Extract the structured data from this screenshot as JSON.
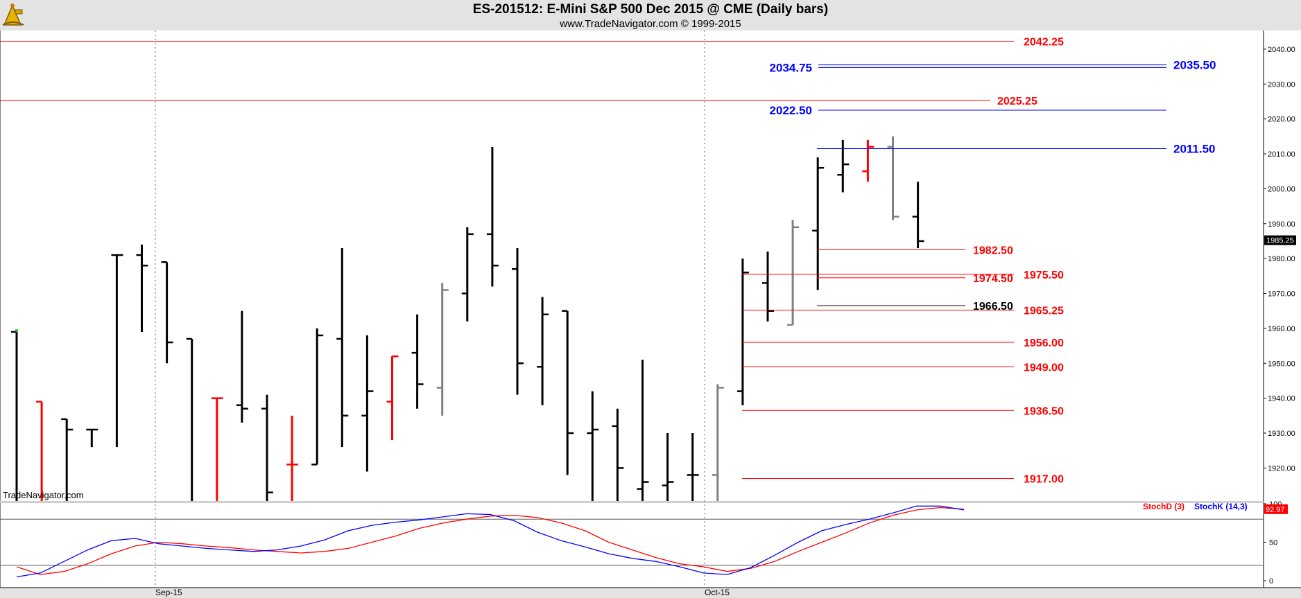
{
  "header": {
    "title": "ES-201512:  E-Mini S&P 500 Dec 2015 @ CME  (Daily bars)",
    "subtitle": "www.TradeNavigator.com © 1999-2015",
    "watermark": "TradeNavigator.com",
    "logo_icon": "sextant-logo-icon"
  },
  "colors": {
    "up_bar": "#000000",
    "down_bar": "#ff0000",
    "gray_bar": "#808080",
    "support_line": "#ff0000",
    "resistance_line": "#0000ff",
    "stoch_d": "#ff0000",
    "stoch_k": "#0000ff"
  },
  "chart_data": [
    {
      "type": "ohlc",
      "xlabel_ticks": [
        "Sep-15",
        "Oct-15"
      ],
      "ylim": [
        1910,
        2044
      ],
      "yticks": [
        "1920.00",
        "1930.00",
        "1940.00",
        "1950.00",
        "1960.00",
        "1970.00",
        "1980.00",
        "1990.00",
        "2000.00",
        "2010.00",
        "2020.00",
        "2030.00",
        "2040.00"
      ],
      "last_price": "1985.25",
      "grid": "vertical dotted at month starts",
      "bars": [
        {
          "o": 1959,
          "h": 1959,
          "l": 1905,
          "c": 1905,
          "color": "black"
        },
        {
          "o": 1939,
          "h": 1939,
          "l": 1905,
          "c": 1905,
          "color": "red"
        },
        {
          "o": 1934,
          "h": 1934,
          "l": 1905,
          "c": 1931,
          "color": "black"
        },
        {
          "o": 1931,
          "h": 1931,
          "l": 1926,
          "c": 1931,
          "color": "black"
        },
        {
          "o": 1981,
          "h": 1981,
          "l": 1926,
          "c": 1981,
          "color": "black"
        },
        {
          "o": 1981,
          "h": 1984,
          "l": 1959,
          "c": 1978,
          "color": "black"
        },
        {
          "o": 1979,
          "h": 1979,
          "l": 1950,
          "c": 1956,
          "color": "black"
        },
        {
          "o": 1957,
          "h": 1957,
          "l": 1905,
          "c": 1905,
          "color": "black"
        },
        {
          "o": 1940,
          "h": 1940,
          "l": 1905,
          "c": 1940,
          "color": "red"
        },
        {
          "o": 1938,
          "h": 1965,
          "l": 1933,
          "c": 1937,
          "color": "black"
        },
        {
          "o": 1937,
          "h": 1941,
          "l": 1910,
          "c": 1913,
          "color": "black"
        },
        {
          "o": 1921,
          "h": 1935,
          "l": 1905,
          "c": 1921,
          "color": "red"
        },
        {
          "o": 1921,
          "h": 1960,
          "l": 1921,
          "c": 1958,
          "color": "black"
        },
        {
          "o": 1957,
          "h": 1983,
          "l": 1926,
          "c": 1935,
          "color": "black"
        },
        {
          "o": 1935,
          "h": 1958,
          "l": 1919,
          "c": 1942,
          "color": "black"
        },
        {
          "o": 1939,
          "h": 1952,
          "l": 1928,
          "c": 1952,
          "color": "red"
        },
        {
          "o": 1953,
          "h": 1964,
          "l": 1937,
          "c": 1944,
          "color": "black"
        },
        {
          "o": 1943,
          "h": 1973,
          "l": 1935,
          "c": 1971,
          "color": "gray"
        },
        {
          "o": 1970,
          "h": 1989,
          "l": 1962,
          "c": 1987,
          "color": "black"
        },
        {
          "o": 1987,
          "h": 2012,
          "l": 1972,
          "c": 1978,
          "color": "black"
        },
        {
          "o": 1977,
          "h": 1983,
          "l": 1941,
          "c": 1950,
          "color": "black"
        },
        {
          "o": 1949,
          "h": 1969,
          "l": 1938,
          "c": 1964,
          "color": "black"
        },
        {
          "o": 1965,
          "h": 1965,
          "l": 1918,
          "c": 1930,
          "color": "black"
        },
        {
          "o": 1930,
          "h": 1942,
          "l": 1905,
          "c": 1931,
          "color": "black"
        },
        {
          "o": 1932,
          "h": 1937,
          "l": 1905,
          "c": 1920,
          "color": "black"
        },
        {
          "o": 1914,
          "h": 1951,
          "l": 1905,
          "c": 1916,
          "color": "black"
        },
        {
          "o": 1915,
          "h": 1930,
          "l": 1905,
          "c": 1916,
          "color": "black"
        },
        {
          "o": 1918,
          "h": 1930,
          "l": 1905,
          "c": 1918,
          "color": "black"
        },
        {
          "o": 1918,
          "h": 1944,
          "l": 1905,
          "c": 1943,
          "color": "gray"
        },
        {
          "o": 1942,
          "h": 1980,
          "l": 1938,
          "c": 1976,
          "color": "black"
        },
        {
          "o": 1973,
          "h": 1982,
          "l": 1962,
          "c": 1965,
          "color": "black"
        },
        {
          "o": 1961,
          "h": 1991,
          "l": 1961,
          "c": 1989,
          "color": "gray"
        },
        {
          "o": 1988,
          "h": 2009,
          "l": 1971,
          "c": 2006,
          "color": "black"
        },
        {
          "o": 2004,
          "h": 2014,
          "l": 1999,
          "c": 2007,
          "color": "black"
        },
        {
          "o": 2005,
          "h": 2014,
          "l": 2002,
          "c": 2012,
          "color": "red"
        },
        {
          "o": 2012,
          "h": 2015,
          "l": 1991,
          "c": 1992,
          "color": "gray"
        },
        {
          "o": 1992,
          "h": 2002,
          "l": 1983,
          "c": 1985,
          "color": "black"
        }
      ],
      "levels": [
        {
          "value": 2042.25,
          "label": "2042.25",
          "side": "support"
        },
        {
          "value": 2035.5,
          "label": "2035.50",
          "side": "resistance"
        },
        {
          "value": 2034.75,
          "label": "2034.75",
          "side": "resistance"
        },
        {
          "value": 2025.25,
          "label": "2025.25",
          "side": "support"
        },
        {
          "value": 2022.5,
          "label": "2022.50",
          "side": "resistance"
        },
        {
          "value": 2011.5,
          "label": "2011.50",
          "side": "resistance"
        },
        {
          "value": 1982.5,
          "label": "1982.50",
          "side": "support"
        },
        {
          "value": 1975.5,
          "label": "1975.50",
          "side": "support"
        },
        {
          "value": 1974.5,
          "label": "1974.50",
          "side": "support"
        },
        {
          "value": 1966.5,
          "label": "1966.50",
          "side": "neutral"
        },
        {
          "value": 1965.25,
          "label": "1965.25",
          "side": "support"
        },
        {
          "value": 1956.0,
          "label": "1956.00",
          "side": "support"
        },
        {
          "value": 1949.0,
          "label": "1949.00",
          "side": "support"
        },
        {
          "value": 1936.5,
          "label": "1936.50",
          "side": "support"
        },
        {
          "value": 1917.0,
          "label": "1917.00",
          "side": "support"
        }
      ]
    },
    {
      "type": "line",
      "ylim": [
        0,
        100
      ],
      "yticks": [
        "0",
        "50",
        "100"
      ],
      "reference_lines": [
        20,
        80
      ],
      "legend": [
        "StochD (3)",
        "StochK (14,3)"
      ],
      "last_value": "92.97",
      "series": [
        {
          "name": "StochD (3)",
          "values": [
            18,
            8,
            12,
            22,
            35,
            45,
            50,
            48,
            45,
            43,
            40,
            38,
            36,
            38,
            42,
            50,
            58,
            68,
            75,
            80,
            84,
            85,
            82,
            75,
            65,
            50,
            40,
            30,
            22,
            18,
            12,
            16,
            25,
            38,
            50,
            62,
            75,
            85,
            92,
            95,
            93
          ]
        },
        {
          "name": "StochK (14,3)",
          "values": [
            5,
            10,
            25,
            40,
            52,
            55,
            48,
            45,
            42,
            40,
            38,
            40,
            45,
            53,
            65,
            72,
            76,
            79,
            83,
            87,
            86,
            78,
            63,
            52,
            44,
            35,
            29,
            25,
            18,
            10,
            8,
            17,
            33,
            50,
            65,
            73,
            80,
            88,
            97,
            97,
            92
          ]
        }
      ]
    }
  ]
}
